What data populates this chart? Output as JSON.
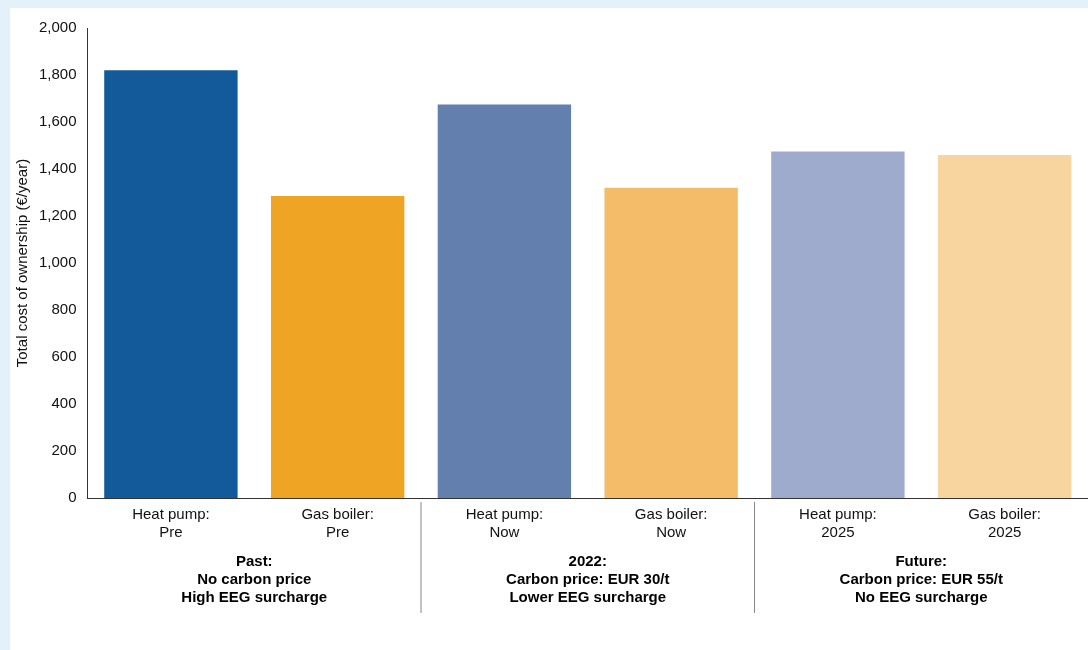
{
  "chart_data": {
    "type": "bar",
    "ylabel": "Total cost of ownership (€/year)",
    "categories": [
      "Heat pump:\nPre",
      "Gas boiler:\nPre",
      "Heat pump:\nNow",
      "Gas boiler:\nNow",
      "Heat pump:\n2025",
      "Gas boiler:\n2025"
    ],
    "values": [
      1820,
      1285,
      1675,
      1320,
      1475,
      1460
    ],
    "colors": [
      "#135a9a",
      "#efa423",
      "#627fae",
      "#f4bc69",
      "#9eabcd",
      "#f8d49f"
    ],
    "ylim": [
      0,
      2000
    ],
    "yticks": [
      {
        "value": 0,
        "label": "0"
      },
      {
        "value": 200,
        "label": "200"
      },
      {
        "value": 400,
        "label": "400"
      },
      {
        "value": 600,
        "label": "600"
      },
      {
        "value": 800,
        "label": "800"
      },
      {
        "value": 1000,
        "label": "1,000"
      },
      {
        "value": 1200,
        "label": "1,200"
      },
      {
        "value": 1400,
        "label": "1,400"
      },
      {
        "value": 1600,
        "label": "1,600"
      },
      {
        "value": 1800,
        "label": "1,800"
      },
      {
        "value": 2000,
        "label": "2,000"
      }
    ],
    "annotations": [
      "Past:\nNo carbon price\nHigh EEG surcharge",
      "2022:\nCarbon price: EUR 30/t\nLower EEG surcharge",
      "Future:\nCarbon price: EUR 55/t\nNo EEG surcharge"
    ],
    "grid": false,
    "legend": false
  }
}
